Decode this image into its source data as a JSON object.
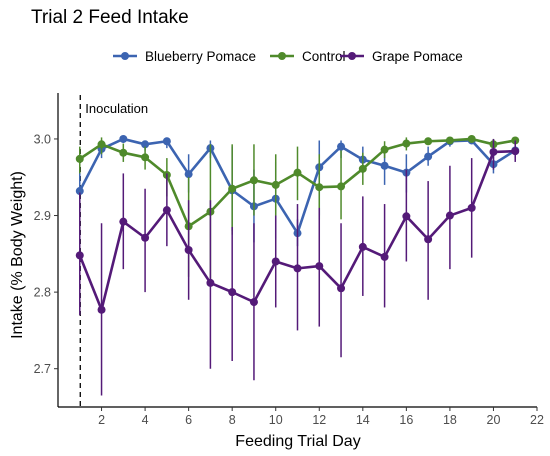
{
  "chart_data": {
    "type": "line",
    "title": "Trial 2 Feed Intake",
    "xlabel": "Feeding Trial Day",
    "ylabel": "Intake (% Body Weight)",
    "xlim": [
      0,
      22
    ],
    "ylim": [
      2.65,
      3.06
    ],
    "x_ticks": [
      2,
      4,
      6,
      8,
      10,
      12,
      14,
      16,
      18,
      20,
      22
    ],
    "y_ticks": [
      2.7,
      2.8,
      2.9,
      3.0
    ],
    "x_tick_labels": [
      "2",
      "4",
      "6",
      "8",
      "10",
      "12",
      "14",
      "16",
      "18",
      "20",
      "22"
    ],
    "y_tick_labels": [
      "2.7",
      "2.8",
      "2.9",
      "3.0"
    ],
    "grid": false,
    "legend_position": "top",
    "annotation": {
      "x": 1,
      "label": "Inoculation",
      "style": "dashed vertical line"
    },
    "x": [
      1,
      2,
      3,
      4,
      5,
      6,
      7,
      8,
      9,
      10,
      11,
      12,
      13,
      14,
      15,
      16,
      17,
      18,
      19,
      20,
      21
    ],
    "series": [
      {
        "name": "Blueberry Pomace",
        "color": "#3c64b1",
        "values": [
          2.932,
          2.987,
          3.0,
          2.993,
          2.997,
          2.954,
          2.988,
          2.933,
          2.912,
          2.922,
          2.877,
          2.963,
          2.99,
          2.973,
          2.965,
          2.956,
          2.977,
          2.997,
          2.998,
          2.967,
          2.985
        ],
        "err_low": [
          2.905,
          2.975,
          2.995,
          2.985,
          2.988,
          2.93,
          2.975,
          2.88,
          2.865,
          2.87,
          2.86,
          2.9,
          2.975,
          2.955,
          2.94,
          2.93,
          2.965,
          2.99,
          2.995,
          2.955,
          2.975
        ],
        "err_high": [
          2.96,
          2.997,
          3.003,
          2.998,
          3.002,
          2.98,
          2.998,
          2.99,
          2.96,
          2.97,
          2.895,
          2.998,
          2.998,
          2.99,
          2.99,
          2.98,
          2.99,
          3.002,
          3.002,
          2.98,
          2.995
        ]
      },
      {
        "name": "Control",
        "color": "#4f8a2b",
        "values": [
          2.974,
          2.993,
          2.982,
          2.976,
          2.953,
          2.886,
          2.905,
          2.935,
          2.946,
          2.94,
          2.956,
          2.937,
          2.938,
          2.961,
          2.986,
          2.994,
          2.997,
          2.998,
          3.0,
          2.993,
          2.998
        ],
        "err_low": [
          2.955,
          2.98,
          2.97,
          2.96,
          2.925,
          2.82,
          2.81,
          2.875,
          2.9,
          2.9,
          2.92,
          2.895,
          2.895,
          2.94,
          2.975,
          2.985,
          2.992,
          2.995,
          2.996,
          2.985,
          2.995
        ],
        "err_high": [
          2.99,
          3.002,
          2.994,
          2.99,
          2.975,
          2.95,
          2.993,
          2.993,
          2.993,
          2.98,
          2.99,
          2.98,
          2.985,
          2.982,
          2.997,
          3.002,
          3.002,
          3.002,
          3.004,
          3.0,
          3.002
        ]
      },
      {
        "name": "Grape Pomace",
        "color": "#541a78",
        "values": [
          2.848,
          2.777,
          2.892,
          2.871,
          2.907,
          2.855,
          2.812,
          2.8,
          2.787,
          2.84,
          2.831,
          2.834,
          2.805,
          2.859,
          2.846,
          2.899,
          2.869,
          2.9,
          2.91,
          2.983,
          2.984
        ],
        "err_low": [
          2.77,
          2.665,
          2.83,
          2.8,
          2.86,
          2.79,
          2.7,
          2.71,
          2.685,
          2.78,
          2.75,
          2.755,
          2.715,
          2.795,
          2.78,
          2.84,
          2.79,
          2.83,
          2.845,
          2.96,
          2.97
        ],
        "err_high": [
          2.93,
          2.89,
          2.955,
          2.935,
          2.955,
          2.92,
          2.92,
          2.885,
          2.89,
          2.9,
          2.915,
          2.91,
          2.89,
          2.925,
          2.915,
          2.96,
          2.945,
          2.965,
          2.975,
          3.0,
          2.998
        ]
      }
    ]
  }
}
